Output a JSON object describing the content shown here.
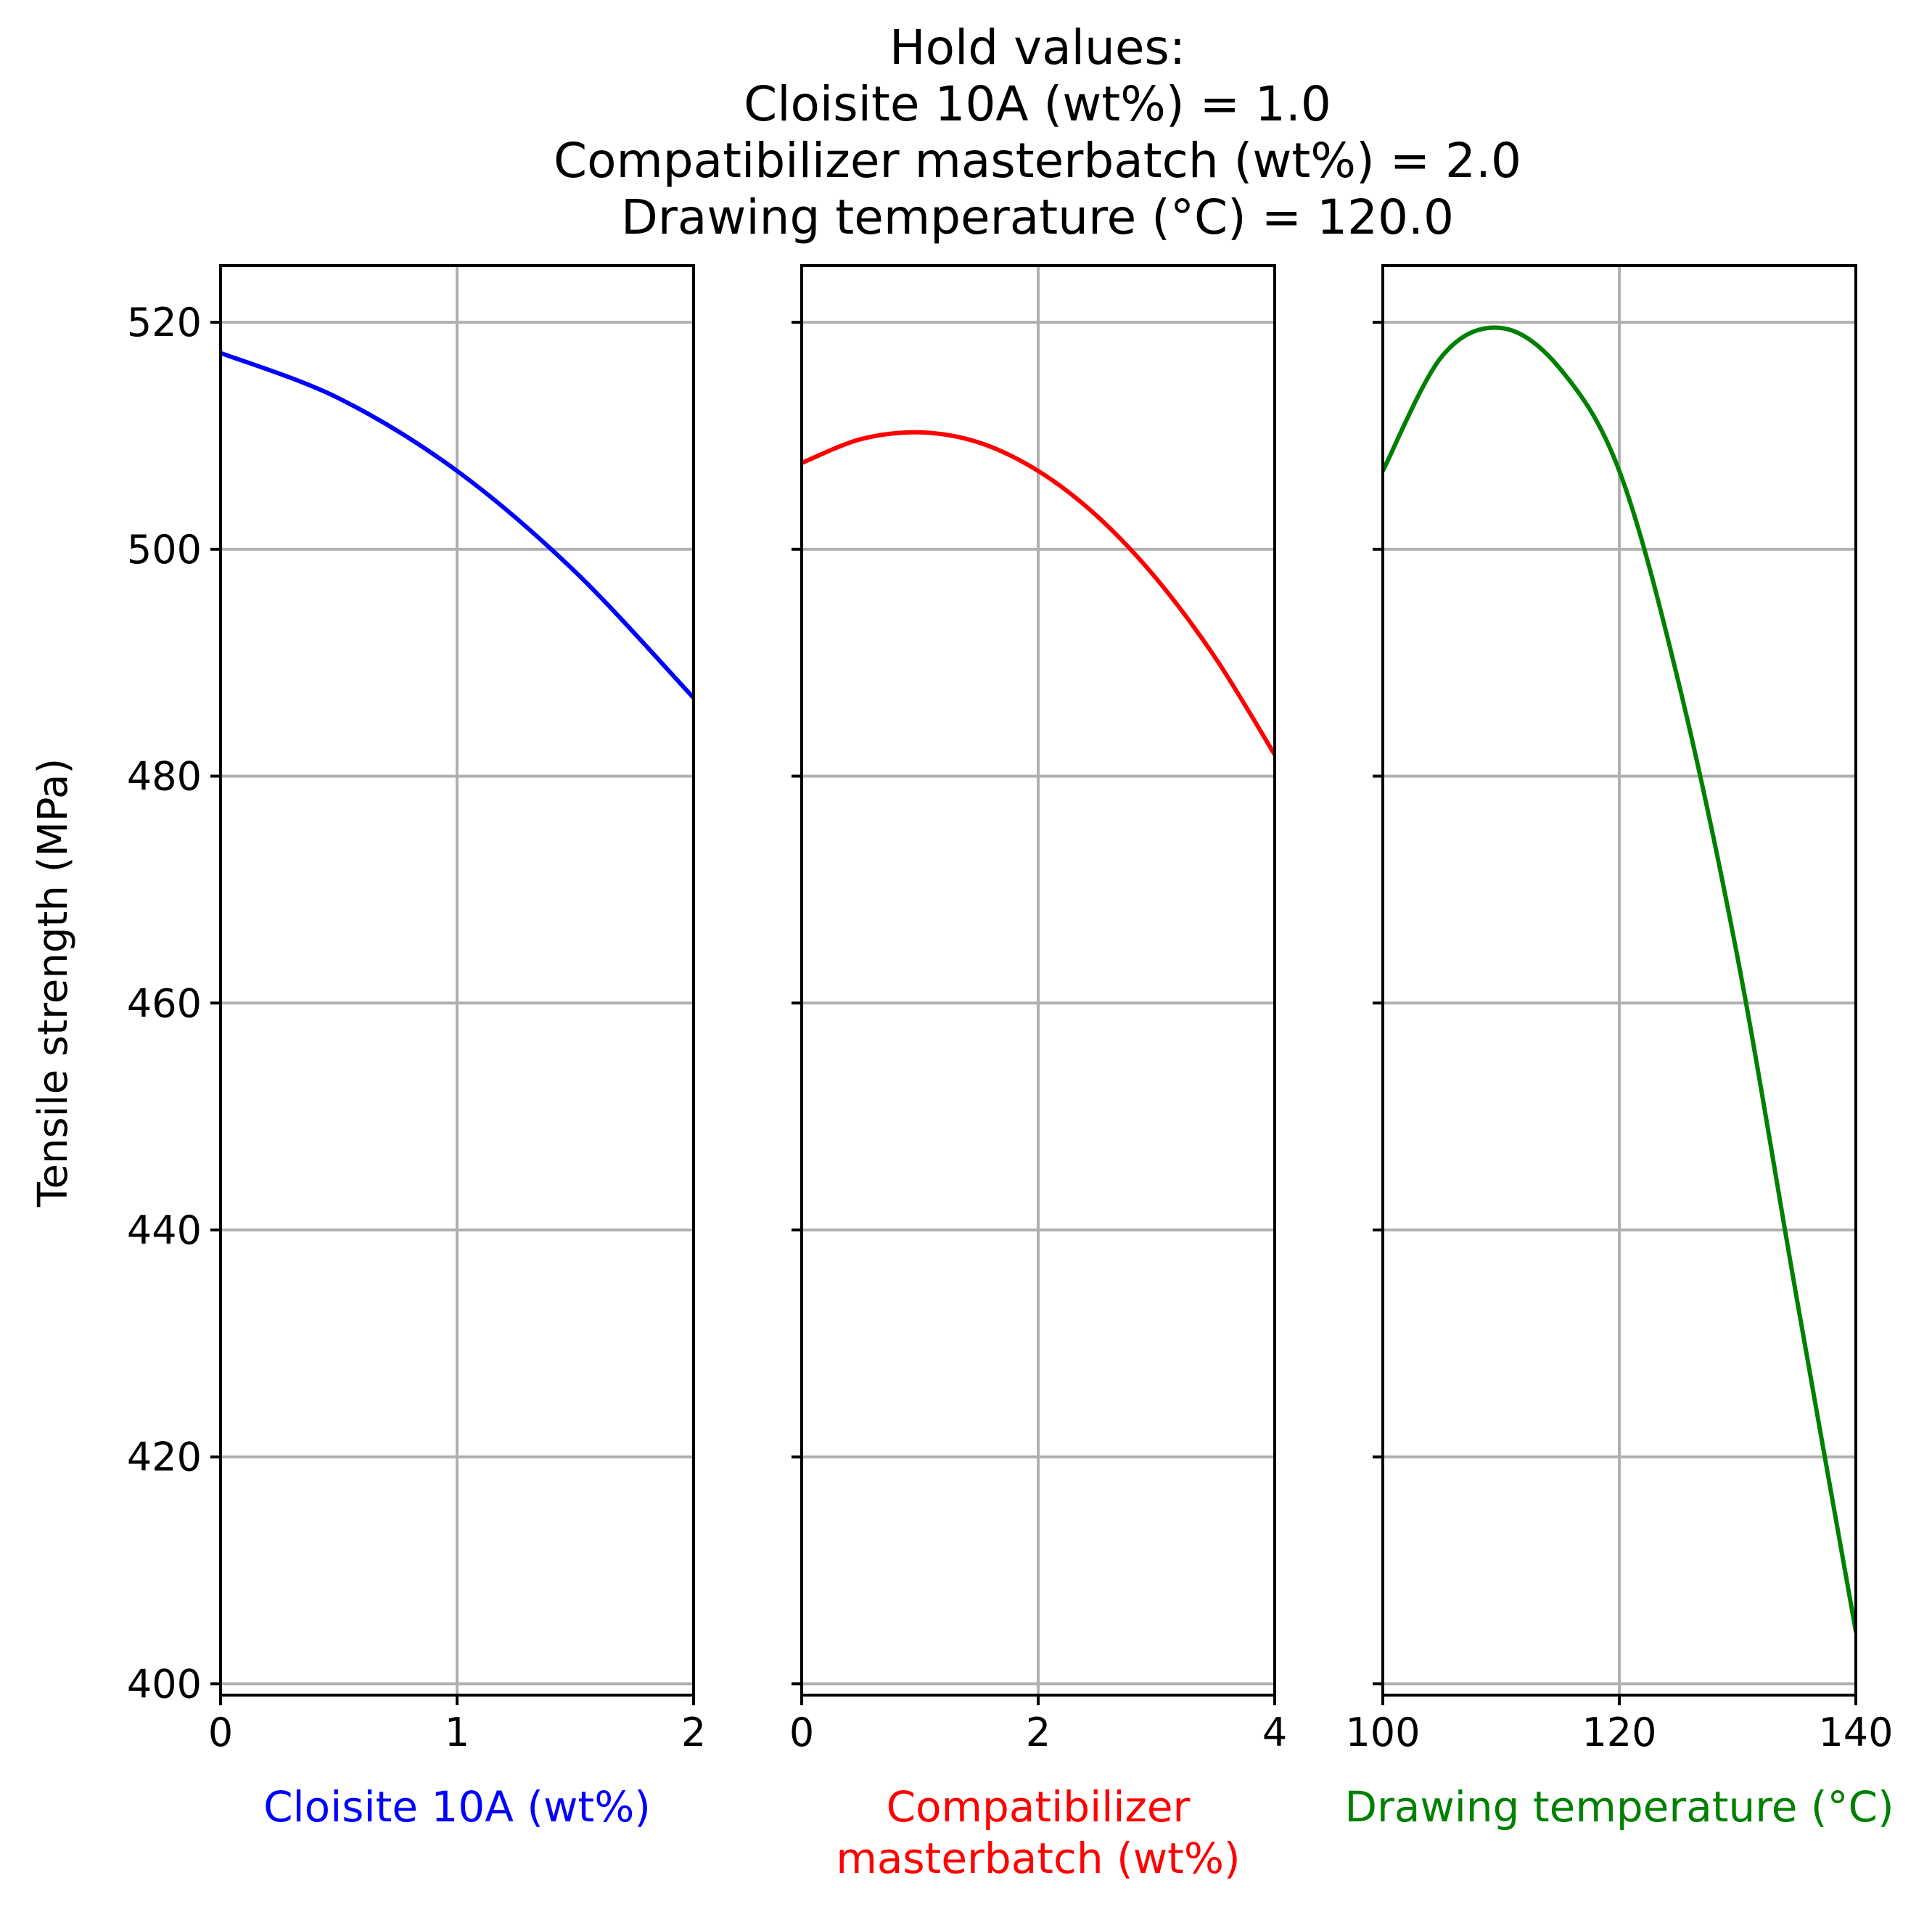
{
  "figure": {
    "suptitle_lines": [
      "Hold values:",
      "Cloisite 10A (wt%) = 1.0",
      "Compatibilizer masterbatch (wt%) = 2.0",
      "Drawing temperature (°C) = 120.0"
    ],
    "ylabel": "Tensile strength (MPa)",
    "colors": {
      "text": "#000000",
      "grid": "#b0b0b0"
    }
  },
  "chart_data": [
    {
      "type": "line",
      "xlabel": "Cloisite 10A (wt%)",
      "xlabel_lines": [
        "Cloisite 10A (wt%)"
      ],
      "ylabel": "Tensile strength (MPa)",
      "color": "#0000ff",
      "grid": true,
      "xlim": [
        0,
        2
      ],
      "ylim": [
        399,
        525
      ],
      "xticks": [
        0,
        1,
        2
      ],
      "yticks": [
        400,
        420,
        440,
        460,
        480,
        500,
        520
      ],
      "x": [
        0,
        0.5,
        1.0,
        1.5,
        2.0
      ],
      "y": [
        517.3,
        513.3,
        506.9,
        498.0,
        486.9
      ]
    },
    {
      "type": "line",
      "xlabel": "Compatibilizer masterbatch (wt%)",
      "xlabel_lines": [
        "Compatibilizer",
        "masterbatch (wt%)"
      ],
      "ylabel": "",
      "color": "#ff0000",
      "grid": true,
      "xlim": [
        0,
        4
      ],
      "ylim": [
        399,
        525
      ],
      "xticks": [
        0,
        2,
        4
      ],
      "yticks": [
        400,
        420,
        440,
        460,
        480,
        500,
        520
      ],
      "x": [
        0,
        0.5,
        1.0,
        1.5,
        2.0,
        2.5,
        3.0,
        3.5,
        4.0
      ],
      "y": [
        507.6,
        509.7,
        510.3,
        509.4,
        506.9,
        502.9,
        497.4,
        490.4,
        481.9
      ]
    },
    {
      "type": "line",
      "xlabel": "Drawing temperature (°C)",
      "xlabel_lines": [
        "Drawing temperature (°C)"
      ],
      "ylabel": "",
      "color": "#008000",
      "grid": true,
      "xlim": [
        100,
        140
      ],
      "ylim": [
        399,
        525
      ],
      "xticks": [
        100,
        120,
        140
      ],
      "yticks": [
        400,
        420,
        440,
        460,
        480,
        500,
        520
      ],
      "x": [
        100,
        105,
        110,
        115,
        120,
        125,
        130,
        135,
        140
      ],
      "y": [
        506.9,
        517.0,
        519.5,
        515.9,
        506.9,
        488.3,
        464.0,
        434.0,
        404.6
      ]
    }
  ]
}
